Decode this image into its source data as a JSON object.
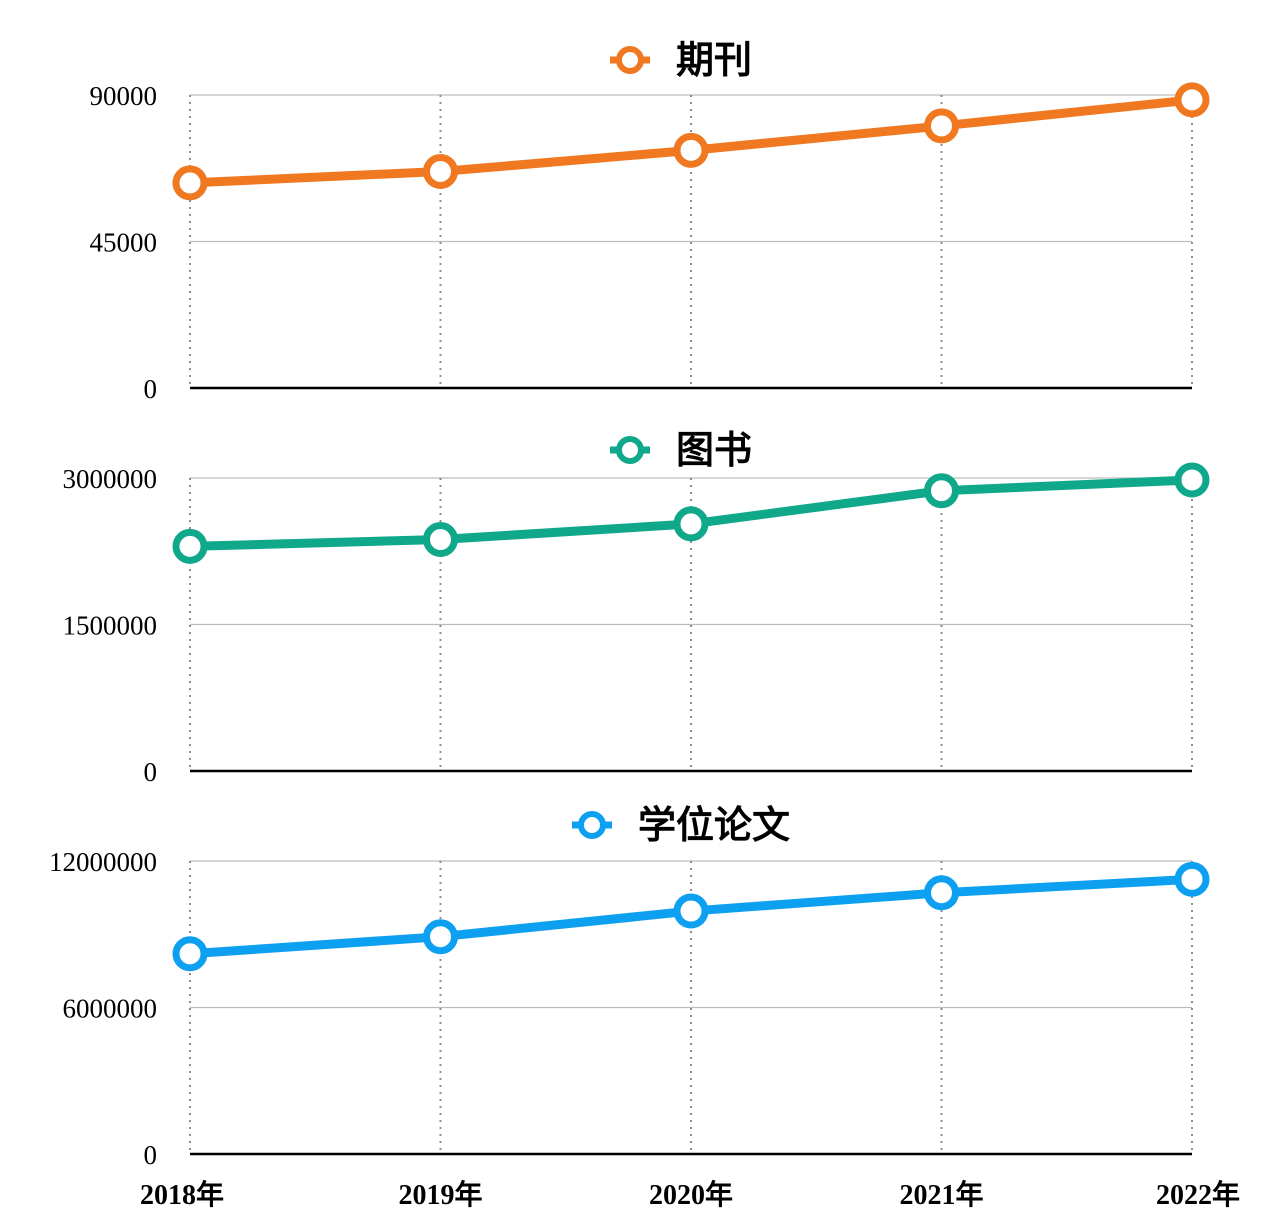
{
  "chart_data": [
    {
      "type": "line",
      "categories": [
        "2018年",
        "2019年",
        "2020年",
        "2021年",
        "2022年"
      ],
      "series": [
        {
          "name": "期刊",
          "values": [
            63000,
            66500,
            73000,
            80500,
            88500
          ]
        }
      ],
      "ylim": [
        0,
        90000
      ],
      "yticks": [
        0,
        45000,
        90000
      ],
      "color": "#f07820",
      "legend": "top-center",
      "grid": true
    },
    {
      "type": "line",
      "categories": [
        "2018年",
        "2019年",
        "2020年",
        "2021年",
        "2022年"
      ],
      "series": [
        {
          "name": "图书",
          "values": [
            2300000,
            2370000,
            2530000,
            2870000,
            2980000
          ]
        }
      ],
      "ylim": [
        0,
        3000000
      ],
      "yticks": [
        0,
        1500000,
        3000000
      ],
      "color": "#10a88a",
      "legend": "top-center",
      "grid": true
    },
    {
      "type": "line",
      "categories": [
        "2018年",
        "2019年",
        "2020年",
        "2021年",
        "2022年"
      ],
      "series": [
        {
          "name": "学位论文",
          "values": [
            8200000,
            8900000,
            9950000,
            10700000,
            11250000
          ]
        }
      ],
      "ylim": [
        0,
        12000000
      ],
      "yticks": [
        0,
        6000000,
        12000000
      ],
      "color": "#0ea0f0",
      "legend": "top-center",
      "grid": true
    }
  ]
}
